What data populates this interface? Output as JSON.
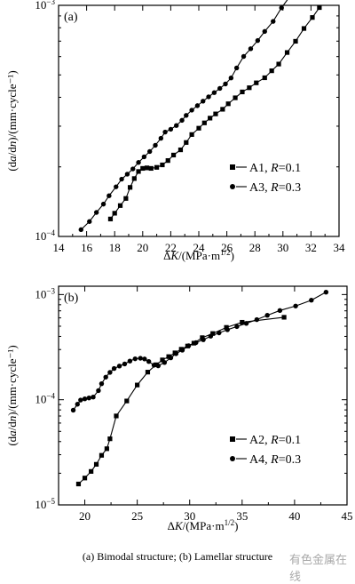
{
  "caption": "(a) Bimodal structure; (b) Lamellar structure",
  "watermark": "有色金属在线",
  "chart_data": [
    {
      "type": "scatter",
      "panel_label": "(a)",
      "xlabel": "ΔK/(MPa·m^1/2)",
      "ylabel": "(da/dn)/(mm·cycle⁻¹)",
      "xlim": [
        14,
        34
      ],
      "xticks": [
        14,
        16,
        18,
        20,
        22,
        24,
        26,
        28,
        30,
        32,
        34
      ],
      "ylim": [
        0.0001,
        0.001
      ],
      "yscale": "log",
      "ytick_labels": [
        {
          "value": 0.001,
          "base": "10",
          "exp": "-3"
        },
        {
          "value": 0.0001,
          "base": "10",
          "exp": "-4"
        }
      ],
      "legend_position": "lower-right",
      "series": [
        {
          "name_prefix": "A1, ",
          "name_var": "R",
          "name_suffix": "=0.1",
          "marker": "square",
          "x": [
            17.7,
            18.0,
            18.4,
            18.8,
            19.1,
            19.4,
            19.7,
            20.0,
            20.3,
            20.6,
            21.0,
            21.4,
            21.8,
            22.2,
            22.7,
            23.1,
            23.5,
            24.0,
            24.4,
            24.8,
            25.2,
            25.7,
            26.1,
            26.6,
            27.1,
            27.6,
            28.1,
            28.7,
            29.2,
            29.7,
            30.3,
            30.9,
            31.5,
            32.1,
            32.6
          ],
          "y": [
            0.000119,
            0.000126,
            0.000136,
            0.000146,
            0.000163,
            0.000178,
            0.000191,
            0.000197,
            0.000198,
            0.000197,
            0.000199,
            0.000204,
            0.000213,
            0.000225,
            0.000237,
            0.000255,
            0.000276,
            0.000294,
            0.00031,
            0.000325,
            0.000339,
            0.000355,
            0.000375,
            0.000398,
            0.000422,
            0.00044,
            0.000462,
            0.000486,
            0.000521,
            0.000557,
            0.000625,
            0.000699,
            0.000794,
            0.000886,
            0.000978
          ]
        },
        {
          "name_prefix": "A3, ",
          "name_var": "R",
          "name_suffix": "=0.3",
          "marker": "circle",
          "x": [
            15.6,
            16.2,
            16.7,
            17.2,
            17.6,
            18.1,
            18.5,
            18.9,
            19.3,
            19.7,
            20.1,
            20.5,
            20.9,
            21.3,
            21.6,
            22.0,
            22.4,
            22.8,
            23.1,
            23.5,
            23.9,
            24.3,
            24.7,
            25.1,
            25.5,
            25.9,
            26.3,
            26.7,
            27.2,
            27.7,
            28.2,
            28.7,
            29.3,
            29.9,
            30.6
          ],
          "y": [
            0.000107,
            0.000116,
            0.000127,
            0.000138,
            0.00015,
            0.000164,
            0.000177,
            0.000186,
            0.000196,
            0.000209,
            0.000221,
            0.000233,
            0.000248,
            0.000266,
            0.000283,
            0.000291,
            0.000302,
            0.000318,
            0.000334,
            0.000352,
            0.000368,
            0.000385,
            0.000402,
            0.000419,
            0.000437,
            0.000457,
            0.000485,
            0.000536,
            0.000601,
            0.000649,
            0.000704,
            0.000771,
            0.000852,
            0.000976,
            0.001115
          ]
        }
      ]
    },
    {
      "type": "scatter",
      "panel_label": "(b)",
      "xlabel": "ΔK/(MPa·m^1/2)",
      "ylabel": "(da/dn)/(mm·cycle⁻¹)",
      "xlim": [
        17.5,
        45
      ],
      "xticks": [
        20,
        25,
        30,
        35,
        40,
        45
      ],
      "ylim": [
        1e-05,
        0.0012
      ],
      "yscale": "log",
      "ytick_labels": [
        {
          "value": 0.001,
          "base": "10",
          "exp": "-3"
        },
        {
          "value": 0.0001,
          "base": "10",
          "exp": "-4"
        },
        {
          "value": 1e-05,
          "base": "10",
          "exp": "-5"
        }
      ],
      "legend_position": "lower-right",
      "series": [
        {
          "name_prefix": "A2, ",
          "name_var": "R",
          "name_suffix": "=0.1",
          "marker": "square",
          "x": [
            19.4,
            20.0,
            20.6,
            21.1,
            21.6,
            22.1,
            22.4,
            23.0,
            24.0,
            25.0,
            26.0,
            26.8,
            27.4,
            28.0,
            28.6,
            29.2,
            29.8,
            30.4,
            31.2,
            32.2,
            33.5,
            35.0,
            39.0
          ],
          "y": [
            1.58e-05,
            1.8e-05,
            2.08e-05,
            2.43e-05,
            2.96e-05,
            3.42e-05,
            4.25e-05,
            7.01e-05,
            9.73e-05,
            0.000138,
            0.000183,
            0.000215,
            0.000239,
            0.000257,
            0.000279,
            0.000302,
            0.000324,
            0.000345,
            0.000389,
            0.000426,
            0.000487,
            0.000545,
            0.000608
          ]
        },
        {
          "name_prefix": "A4, ",
          "name_var": "R",
          "name_suffix": "=0.3",
          "marker": "circle",
          "x": [
            18.9,
            19.3,
            19.6,
            20.0,
            20.4,
            20.8,
            21.3,
            21.6,
            22.0,
            22.4,
            22.8,
            23.3,
            23.8,
            24.3,
            24.8,
            25.3,
            25.7,
            26.1,
            26.6,
            27.0,
            27.6,
            28.2,
            28.7,
            29.3,
            29.9,
            30.6,
            31.3,
            32.0,
            32.8,
            33.6,
            34.5,
            35.4,
            36.4,
            37.4,
            38.6,
            40.1,
            41.6,
            43.0
          ],
          "y": [
            7.96e-05,
            9.06e-05,
            9.93e-05,
            0.000102,
            0.000104,
            0.000106,
            0.000122,
            0.000142,
            0.000164,
            0.000182,
            0.000198,
            0.000209,
            0.000219,
            0.000233,
            0.000245,
            0.000248,
            0.000244,
            0.000231,
            0.000213,
            0.00021,
            0.000226,
            0.00025,
            0.000274,
            0.000296,
            0.000326,
            0.000349,
            0.000372,
            0.000402,
            0.000432,
            0.000463,
            0.000496,
            0.000532,
            0.000578,
            0.000635,
            0.000705,
            0.000778,
            0.000884,
            0.001054
          ]
        }
      ]
    }
  ]
}
